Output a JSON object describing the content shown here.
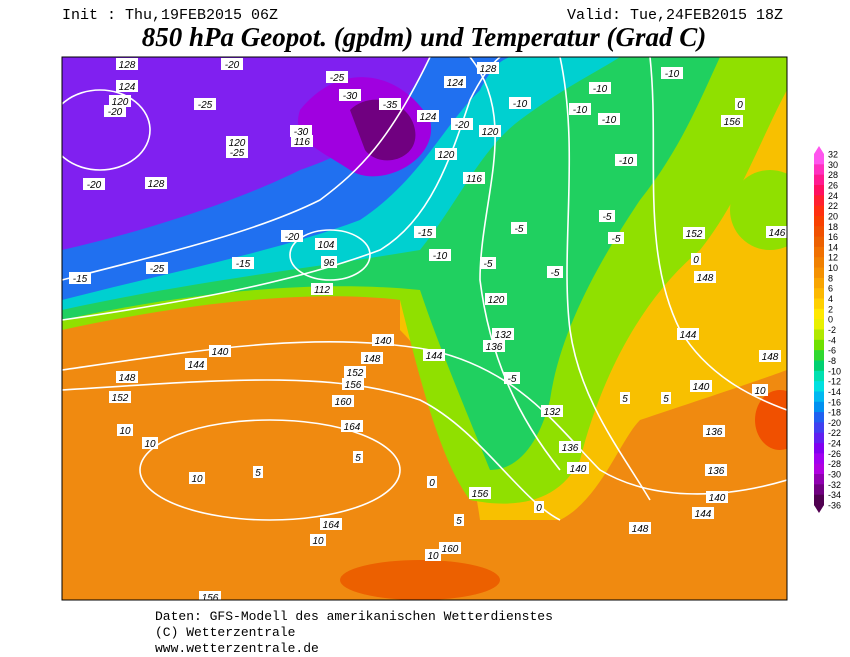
{
  "header": {
    "init": "Init : Thu,19FEB2015 06Z",
    "valid": "Valid: Tue,24FEB2015 18Z",
    "title": "850 hPa Geopot. (gpdm) und Temperatur (Grad C)"
  },
  "legend": {
    "ticks": [
      32,
      30,
      28,
      26,
      24,
      22,
      20,
      18,
      16,
      14,
      12,
      10,
      8,
      6,
      4,
      2,
      0,
      -2,
      -4,
      -6,
      -8,
      -10,
      -12,
      -14,
      -16,
      -18,
      -20,
      -22,
      -24,
      -26,
      -28,
      -30,
      -32,
      -34,
      -36
    ],
    "colors": [
      "#ff55ee",
      "#ff30c0",
      "#ff1a90",
      "#ff1060",
      "#ff2030",
      "#ff3010",
      "#f84000",
      "#f05000",
      "#ec6000",
      "#f07000",
      "#f08000",
      "#f49000",
      "#f8a400",
      "#fcb800",
      "#ffd000",
      "#ffe800",
      "#e8f000",
      "#b0e800",
      "#70e000",
      "#30d830",
      "#00d070",
      "#00e0b0",
      "#00e0e0",
      "#00b8f0",
      "#0090f0",
      "#2060f0",
      "#4040f0",
      "#6020f0",
      "#8000f0",
      "#a000f0",
      "#b000e0",
      "#9000b0",
      "#700080",
      "#500050"
    ]
  },
  "map": {
    "labels": [
      "128",
      "124",
      "120",
      "-20",
      "-25",
      "-20",
      "-25",
      "-30",
      "-35",
      "124",
      "120",
      "-20",
      "-10",
      "-10",
      "-10",
      "-10",
      "-5",
      "-5",
      "-5",
      "-5",
      "-10",
      "-15",
      "-15",
      "-25",
      "-20",
      "-15",
      "128",
      "112",
      "104",
      "96",
      "116",
      "120",
      "132",
      "136",
      "140",
      "144",
      "148",
      "152",
      "156",
      "160",
      "164",
      "164",
      "160",
      "156",
      "148",
      "152",
      "144",
      "140",
      "10",
      "10",
      "10",
      "5",
      "5",
      "10",
      "156",
      "5",
      "10",
      "0",
      "0",
      "132",
      "136",
      "140",
      "144",
      "148",
      "140",
      "136",
      "136",
      "140",
      "144",
      "148",
      "152",
      "156",
      "146",
      "0",
      "-5",
      "10",
      "148",
      "5",
      "5",
      "-10",
      "-10",
      "0",
      "128",
      "124",
      "120",
      "-5",
      "-20",
      "-25",
      "120",
      "116",
      "-30"
    ]
  },
  "footer": {
    "line1": "Daten: GFS-Modell des amerikanischen Wetterdienstes",
    "line2": "(C) Wetterzentrale",
    "line3": "www.wetterzentrale.de"
  }
}
